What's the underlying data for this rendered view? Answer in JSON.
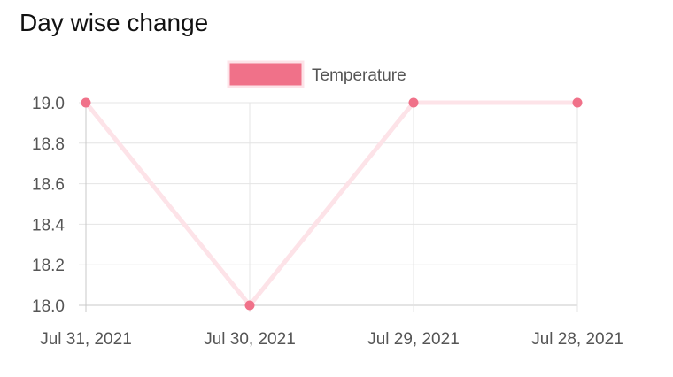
{
  "title": "Day wise change",
  "chart_data": {
    "type": "line",
    "categories": [
      "Jul 31, 2021",
      "Jul 30, 2021",
      "Jul 29, 2021",
      "Jul 28, 2021"
    ],
    "series": [
      {
        "name": "Temperature",
        "values": [
          19.0,
          18.0,
          19.0,
          19.0
        ],
        "color": "#f07189",
        "line_color": "#fde3e8"
      }
    ],
    "y_ticks": [
      "19.0",
      "18.8",
      "18.6",
      "18.4",
      "18.2",
      "18.0"
    ],
    "ylim": [
      18.0,
      19.0
    ],
    "grid": true,
    "legend": "top-center",
    "xlabel": "",
    "ylabel": ""
  }
}
